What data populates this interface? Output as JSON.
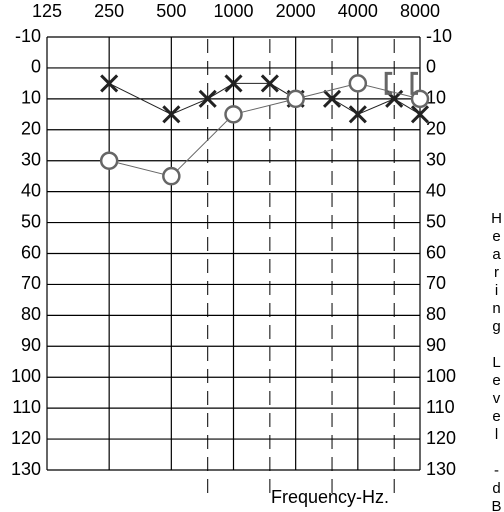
{
  "chart_data": {
    "type": "audiogram",
    "x_label": "Frequency-Hz.",
    "y2_label": "Hearing Level -dB.",
    "xscale": "log",
    "xlim": [
      125,
      8000
    ],
    "xticks": [
      125,
      250,
      500,
      1000,
      2000,
      4000,
      8000
    ],
    "minor_xticks": [
      750,
      1500,
      3000,
      6000
    ],
    "ylim": [
      -10,
      130
    ],
    "yticks": [
      -10,
      0,
      10,
      20,
      30,
      40,
      50,
      60,
      70,
      80,
      90,
      100,
      110,
      120,
      130
    ],
    "y_inverted": true,
    "grid": true,
    "series": [
      {
        "marker": "x",
        "color": "#222222",
        "x": [
          250,
          500,
          750,
          1000,
          1500,
          2000,
          3000,
          4000,
          6000,
          8000
        ],
        "values": [
          5,
          15,
          10,
          5,
          5,
          10,
          10,
          15,
          10,
          15
        ]
      },
      {
        "marker": "o",
        "color": "#666666",
        "x": [
          250,
          500,
          1000,
          2000,
          4000,
          8000
        ],
        "values": [
          30,
          35,
          15,
          10,
          5,
          10
        ]
      },
      {
        "marker": "bracket",
        "color": "#666666",
        "x": [
          6000,
          8000
        ],
        "values": [
          5,
          5
        ]
      }
    ]
  }
}
